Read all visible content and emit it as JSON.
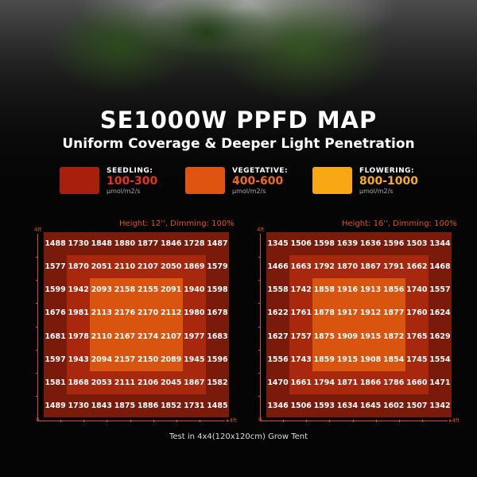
{
  "title": "SE1000W PPFD MAP",
  "subtitle": "Uniform Coverage & Deeper Light Penetration",
  "legend": [
    {
      "label": "SEEDLING:",
      "range": "100-300",
      "unit": "µmol/m2/s",
      "color": "#a8200c",
      "text_color": "#e8321c"
    },
    {
      "label": "VEGETATIVE:",
      "range": "400-600",
      "unit": "µmol/m2/s",
      "color": "#de5410",
      "text_color": "#ef6a1c"
    },
    {
      "label": "FLOWERING:",
      "range": "800-1000",
      "unit": "µmol/m2/s",
      "color": "#f7a812",
      "text_color": "#f7ae1a"
    }
  ],
  "footer": "Test in 4x4(120x120cm) Grow Tent",
  "chart_data": [
    {
      "type": "heatmap",
      "title": "Height: 12'', Dimming: 100%",
      "x_axis": {
        "start": "0",
        "end": "4ft"
      },
      "y_axis": {
        "start": "0",
        "end": "4ft"
      },
      "ring_colors": [
        "#7a1a0b",
        "#a8280e",
        "#d9540f"
      ],
      "values": [
        [
          1488,
          1730,
          1848,
          1880,
          1877,
          1846,
          1728,
          1487
        ],
        [
          1577,
          1870,
          2051,
          2110,
          2107,
          2050,
          1869,
          1579
        ],
        [
          1599,
          1942,
          2093,
          2158,
          2155,
          2091,
          1940,
          1598
        ],
        [
          1676,
          1981,
          2113,
          2176,
          2170,
          2112,
          1980,
          1678
        ],
        [
          1681,
          1978,
          2110,
          2167,
          2174,
          2107,
          1977,
          1683
        ],
        [
          1597,
          1943,
          2094,
          2157,
          2150,
          2089,
          1945,
          1596
        ],
        [
          1581,
          1868,
          2053,
          2111,
          2106,
          2045,
          1867,
          1582
        ],
        [
          1489,
          1730,
          1843,
          1875,
          1886,
          1852,
          1731,
          1485
        ]
      ]
    },
    {
      "type": "heatmap",
      "title": "Height: 16'', Dimming: 100%",
      "x_axis": {
        "start": "0",
        "end": "4ft"
      },
      "y_axis": {
        "start": "0",
        "end": "4ft"
      },
      "ring_colors": [
        "#7a1a0b",
        "#a8280e",
        "#d9540f"
      ],
      "values": [
        [
          1345,
          1506,
          1598,
          1639,
          1636,
          1596,
          1503,
          1344
        ],
        [
          1466,
          1663,
          1792,
          1870,
          1867,
          1791,
          1662,
          1468
        ],
        [
          1558,
          1742,
          1858,
          1916,
          1913,
          1856,
          1740,
          1557
        ],
        [
          1622,
          1761,
          1878,
          1917,
          1912,
          1877,
          1760,
          1624
        ],
        [
          1627,
          1757,
          1875,
          1909,
          1915,
          1872,
          1765,
          1629
        ],
        [
          1556,
          1743,
          1859,
          1915,
          1908,
          1854,
          1745,
          1554
        ],
        [
          1470,
          1661,
          1794,
          1871,
          1866,
          1786,
          1660,
          1471
        ],
        [
          1346,
          1506,
          1593,
          1634,
          1645,
          1602,
          1507,
          1342
        ]
      ]
    }
  ]
}
